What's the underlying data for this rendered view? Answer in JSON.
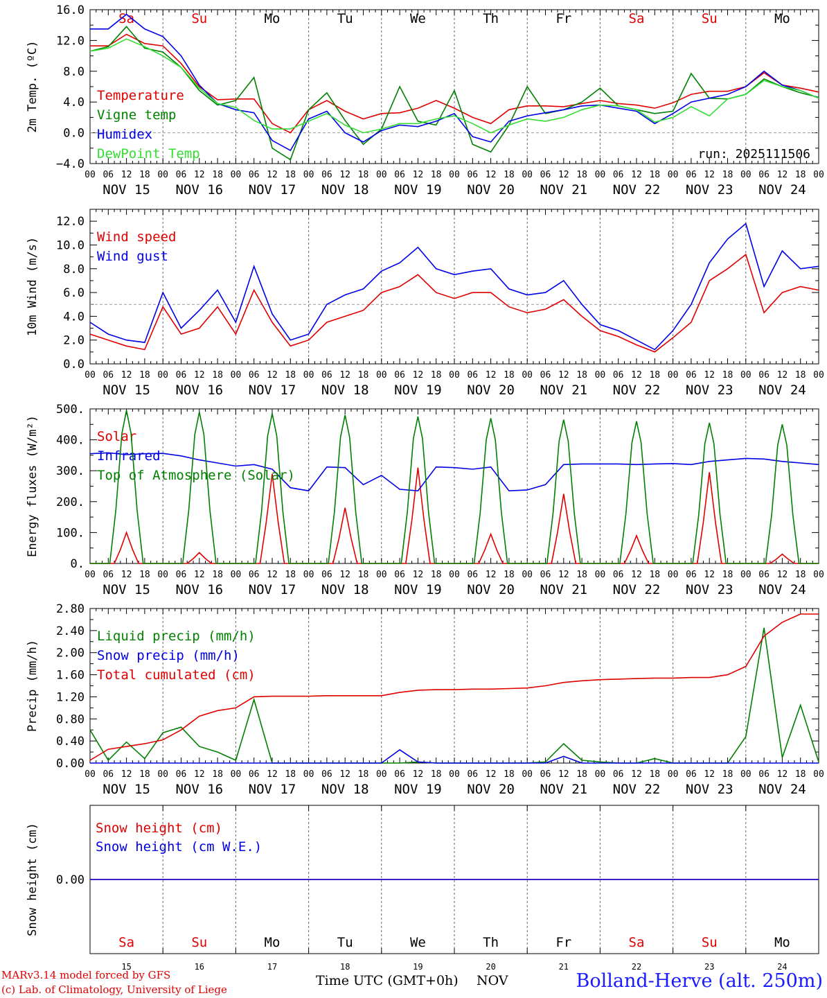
{
  "colors": {
    "red": "#e00000",
    "green": "#008000",
    "blue": "#0000e6",
    "lightgreen": "#33dd33",
    "grid": "#666666",
    "ref": "#999999"
  },
  "footer": {
    "model": "MARv3.14 model forced by GFS",
    "copyright": "(c) Lab. of Climatology, University of Liege",
    "time_label": "Time UTC (GMT+0h)",
    "month": "NOV",
    "station": "Bolland-Herve (alt. 250m)"
  },
  "chart_data": [
    {
      "id": "temp",
      "type": "line",
      "ylabel": "2m Temp. (ºC)",
      "ylim": [
        -4.0,
        16.0
      ],
      "yticks": [
        "-4.0",
        "0.0",
        "4.0",
        "8.0",
        "12.0",
        "16.0"
      ],
      "ref_line": 0.0,
      "annotation": "run: 2025111506",
      "day_names": [
        "Sa",
        "Su",
        "Mo",
        "Tu",
        "We",
        "Th",
        "Fr",
        "Sa",
        "Su",
        "Mo"
      ],
      "day_name_colors": [
        "red",
        "red",
        "black",
        "black",
        "black",
        "black",
        "black",
        "red",
        "red",
        "black"
      ],
      "date_labels": [
        "NOV 15",
        "NOV 16",
        "NOV 17",
        "NOV 18",
        "NOV 19",
        "NOV 20",
        "NOV 21",
        "NOV 22",
        "NOV 23",
        "NOV 24"
      ],
      "hour_ticks": [
        "00",
        "06",
        "12",
        "18"
      ],
      "x_hours": [
        0,
        6,
        12,
        18,
        24,
        30,
        36,
        42,
        48,
        54,
        60,
        66,
        72,
        78,
        84,
        90,
        96,
        102,
        108,
        114,
        120,
        126,
        132,
        138,
        144,
        150,
        156,
        162,
        168,
        174,
        180,
        186,
        192,
        198,
        204,
        210,
        216,
        222,
        228,
        234,
        240
      ],
      "series": [
        {
          "name": "Temperature",
          "color": "red",
          "values": [
            11.3,
            11.3,
            12.8,
            11.6,
            11.3,
            9.0,
            6.0,
            4.3,
            4.4,
            4.4,
            1.2,
            0.0,
            3.0,
            4.2,
            2.8,
            1.8,
            2.5,
            2.6,
            3.2,
            4.2,
            3.2,
            2.0,
            1.2,
            3.0,
            3.5,
            3.5,
            3.4,
            3.8,
            4.2,
            3.8,
            3.6,
            3.2,
            3.9,
            5.0,
            5.4,
            5.4,
            6.0,
            7.8,
            6.2,
            5.8,
            5.3
          ]
        },
        {
          "name": "Vigne temp",
          "color": "green",
          "values": [
            10.6,
            11.2,
            13.8,
            11.0,
            10.5,
            8.5,
            5.5,
            3.6,
            4.2,
            7.2,
            -2.0,
            -3.5,
            3.0,
            5.2,
            1.6,
            -1.5,
            0.5,
            6.0,
            1.5,
            1.0,
            5.5,
            -1.5,
            -2.5,
            1.0,
            6.0,
            2.5,
            3.0,
            4.0,
            5.8,
            3.5,
            3.0,
            2.5,
            2.8,
            7.7,
            4.5,
            4.4,
            5.0,
            7.0,
            6.0,
            5.2,
            4.6
          ]
        },
        {
          "name": "Humidex",
          "color": "blue",
          "values": [
            13.5,
            13.5,
            15.4,
            13.5,
            12.5,
            10.0,
            6.2,
            3.8,
            3.0,
            2.6,
            -1.0,
            -2.3,
            1.8,
            2.8,
            0.0,
            -1.2,
            0.3,
            1.0,
            0.8,
            1.5,
            2.5,
            -0.5,
            -1.2,
            1.5,
            2.2,
            2.6,
            3.0,
            3.5,
            3.6,
            3.2,
            2.8,
            1.2,
            2.5,
            4.0,
            4.5,
            5.0,
            6.0,
            8.0,
            6.2,
            5.5,
            4.5
          ]
        },
        {
          "name": "DewPoint Temp",
          "color": "lightgreen",
          "values": [
            10.6,
            11.0,
            12.2,
            11.2,
            10.0,
            8.5,
            5.8,
            3.8,
            3.3,
            1.6,
            0.5,
            0.5,
            1.5,
            2.5,
            1.0,
            0.0,
            0.5,
            1.2,
            1.2,
            1.8,
            2.2,
            1.2,
            0.0,
            1.0,
            1.8,
            1.5,
            2.0,
            3.0,
            3.6,
            3.5,
            3.0,
            1.4,
            2.0,
            3.4,
            2.2,
            4.4,
            5.0,
            6.8,
            6.0,
            5.5,
            4.5
          ]
        }
      ]
    },
    {
      "id": "wind",
      "type": "line",
      "ylabel": "10m Wind (m/s)",
      "ylim": [
        0.0,
        13.0
      ],
      "yticks": [
        "0.0",
        "2.0",
        "4.0",
        "6.0",
        "8.0",
        "10.0",
        "12.0"
      ],
      "ref_line": 5.0,
      "date_labels": [
        "NOV 15",
        "NOV 16",
        "NOV 17",
        "NOV 18",
        "NOV 19",
        "NOV 20",
        "NOV 21",
        "NOV 22",
        "NOV 23",
        "NOV 24"
      ],
      "hour_ticks": [
        "00",
        "06",
        "12",
        "18"
      ],
      "x_hours": [
        0,
        6,
        12,
        18,
        24,
        30,
        36,
        42,
        48,
        54,
        60,
        66,
        72,
        78,
        84,
        90,
        96,
        102,
        108,
        114,
        120,
        126,
        132,
        138,
        144,
        150,
        156,
        162,
        168,
        174,
        180,
        186,
        192,
        198,
        204,
        210,
        216,
        222,
        228,
        234,
        240
      ],
      "series": [
        {
          "name": "Wind speed",
          "color": "red",
          "values": [
            2.5,
            2.0,
            1.5,
            1.2,
            4.8,
            2.5,
            3.0,
            4.8,
            2.5,
            6.2,
            3.5,
            1.5,
            2.0,
            3.5,
            4.0,
            4.5,
            6.0,
            6.5,
            7.5,
            6.0,
            5.5,
            6.0,
            6.0,
            4.8,
            4.3,
            4.6,
            5.4,
            4.0,
            2.8,
            2.3,
            1.6,
            1.0,
            2.2,
            3.5,
            7.0,
            8.0,
            9.2,
            4.3,
            6.0,
            6.5,
            6.2
          ]
        },
        {
          "name": "Wind gust",
          "color": "blue",
          "values": [
            3.5,
            2.5,
            2.0,
            1.8,
            6.0,
            3.0,
            4.5,
            6.2,
            3.5,
            8.2,
            4.2,
            2.0,
            2.5,
            5.0,
            5.8,
            6.3,
            7.8,
            8.5,
            9.8,
            8.0,
            7.5,
            7.8,
            8.0,
            6.3,
            5.8,
            6.0,
            7.0,
            5.0,
            3.3,
            2.8,
            2.0,
            1.2,
            2.8,
            5.0,
            8.5,
            10.5,
            11.8,
            6.5,
            9.5,
            8.0,
            8.2
          ]
        }
      ]
    },
    {
      "id": "energy",
      "type": "line",
      "ylabel": "Energy fluxes (W/m²)",
      "ylim": [
        0,
        500
      ],
      "yticks": [
        "0.",
        "100.",
        "200.",
        "300.",
        "400.",
        "500."
      ],
      "date_labels": [
        "NOV 15",
        "NOV 16",
        "NOV 17",
        "NOV 18",
        "NOV 19",
        "NOV 20",
        "NOV 21",
        "NOV 22",
        "NOV 23",
        "NOV 24"
      ],
      "hour_ticks": [
        "00",
        "06",
        "12",
        "18"
      ],
      "solar_peaks": [
        100,
        35,
        290,
        180,
        310,
        95,
        225,
        90,
        295,
        30
      ],
      "toa_peaks": [
        495,
        490,
        485,
        480,
        475,
        470,
        465,
        460,
        455,
        450
      ],
      "x_hours": [
        0,
        6,
        12,
        18,
        24,
        30,
        36,
        42,
        48,
        54,
        60,
        66,
        72,
        78,
        84,
        90,
        96,
        102,
        108,
        114,
        120,
        126,
        132,
        138,
        144,
        150,
        156,
        162,
        168,
        174,
        180,
        186,
        192,
        198,
        204,
        210,
        216,
        222,
        228,
        234,
        240
      ],
      "series": [
        {
          "name": "Solar",
          "color": "red",
          "type": "daily"
        },
        {
          "name": "Infrared",
          "color": "blue",
          "values": [
            355,
            358,
            352,
            355,
            356,
            348,
            335,
            325,
            315,
            320,
            305,
            245,
            235,
            312,
            310,
            255,
            285,
            240,
            235,
            312,
            310,
            305,
            312,
            235,
            238,
            255,
            320,
            322,
            322,
            322,
            320,
            322,
            323,
            320,
            330,
            335,
            340,
            338,
            330,
            325,
            320
          ]
        },
        {
          "name": "Top of Atmosphere (Solar)",
          "color": "green",
          "type": "daily"
        }
      ]
    },
    {
      "id": "precip",
      "type": "line",
      "ylabel": "Precip (mm/h)",
      "ylim": [
        0.0,
        2.8
      ],
      "yticks": [
        "0.00",
        "0.40",
        "0.80",
        "1.20",
        "1.60",
        "2.00",
        "2.40",
        "2.80"
      ],
      "date_labels": [
        "NOV 15",
        "NOV 16",
        "NOV 17",
        "NOV 18",
        "NOV 19",
        "NOV 20",
        "NOV 21",
        "NOV 22",
        "NOV 23",
        "NOV 24"
      ],
      "hour_ticks": [
        "00",
        "06",
        "12",
        "18"
      ],
      "x_hours": [
        0,
        6,
        12,
        18,
        24,
        30,
        36,
        42,
        48,
        54,
        60,
        66,
        72,
        78,
        84,
        90,
        96,
        102,
        108,
        114,
        120,
        126,
        132,
        138,
        144,
        150,
        156,
        162,
        168,
        174,
        180,
        186,
        192,
        198,
        204,
        210,
        216,
        222,
        228,
        234,
        240
      ],
      "series": [
        {
          "name": "Liquid precip (mm/h)",
          "color": "green",
          "values": [
            0.6,
            0.05,
            0.38,
            0.08,
            0.55,
            0.65,
            0.3,
            0.2,
            0.05,
            1.15,
            0.0,
            0.0,
            0.0,
            0.0,
            0.0,
            0.0,
            0.0,
            0.0,
            0.02,
            0.0,
            0.0,
            0.0,
            0.0,
            0.0,
            0.0,
            0.02,
            0.35,
            0.05,
            0.02,
            0.0,
            0.0,
            0.08,
            0.0,
            0.0,
            0.0,
            0.0,
            0.48,
            2.45,
            0.1,
            1.05,
            0.02
          ]
        },
        {
          "name": "Snow precip (mm/h)",
          "color": "blue",
          "values": [
            0.0,
            0.0,
            0.0,
            0.0,
            0.0,
            0.0,
            0.0,
            0.0,
            0.0,
            0.0,
            0.0,
            0.0,
            0.0,
            0.0,
            0.0,
            0.0,
            0.0,
            0.24,
            0.02,
            0.0,
            0.0,
            0.0,
            0.0,
            0.0,
            0.0,
            0.0,
            0.12,
            0.0,
            0.0,
            0.0,
            0.0,
            0.0,
            0.0,
            0.0,
            0.0,
            0.0,
            0.0,
            0.0,
            0.0,
            0.0,
            0.0
          ]
        },
        {
          "name": "Total cumulated (cm)",
          "color": "red",
          "values": [
            0.05,
            0.25,
            0.3,
            0.35,
            0.42,
            0.6,
            0.85,
            0.95,
            1.0,
            1.2,
            1.21,
            1.21,
            1.21,
            1.22,
            1.22,
            1.22,
            1.22,
            1.28,
            1.32,
            1.33,
            1.33,
            1.34,
            1.34,
            1.35,
            1.36,
            1.4,
            1.46,
            1.49,
            1.51,
            1.52,
            1.53,
            1.54,
            1.54,
            1.55,
            1.55,
            1.6,
            1.75,
            2.3,
            2.55,
            2.7,
            2.7
          ]
        }
      ]
    },
    {
      "id": "snow",
      "type": "line",
      "ylabel": "Snow height (cm)",
      "ylim": [
        -1.0,
        1.0
      ],
      "yticks": [
        "0.00"
      ],
      "day_names": [
        "Sa",
        "Su",
        "Mo",
        "Tu",
        "We",
        "Th",
        "Fr",
        "Sa",
        "Su",
        "Mo"
      ],
      "day_name_colors": [
        "red",
        "red",
        "black",
        "black",
        "black",
        "black",
        "black",
        "red",
        "red",
        "black"
      ],
      "day_numbers": [
        "15",
        "16",
        "17",
        "18",
        "19",
        "20",
        "21",
        "22",
        "23",
        "24"
      ],
      "x_hours": [
        0,
        240
      ],
      "series": [
        {
          "name": "Snow height (cm)",
          "color": "red",
          "values": [
            0.0,
            0.0
          ]
        },
        {
          "name": "Snow height (cm W.E.)",
          "color": "blue",
          "values": [
            0.0,
            0.0
          ]
        }
      ]
    }
  ]
}
